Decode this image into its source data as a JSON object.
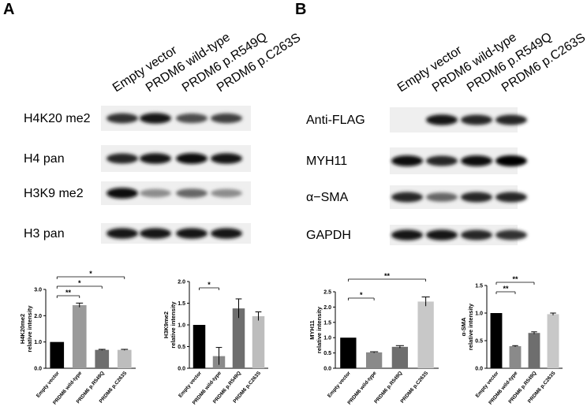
{
  "panels": [
    "A",
    "B"
  ],
  "blots": [
    {
      "lanes": [
        "Empty vector",
        "PRDM6 wild-type",
        "PRDM6 p.R549Q",
        "PRDM6 p.C263S"
      ],
      "rows": [
        "H4K20 me2",
        "H4 pan",
        "H3K9 me2",
        "H3 pan"
      ]
    },
    {
      "lanes": [
        "Empty vector",
        "PRDM6 wild-type",
        "PRDM6 p.R549Q",
        "PRDM6 p.C263S"
      ],
      "rows": [
        "Anti-FLAG",
        "MYH11",
        "α−SMA",
        "GAPDH"
      ]
    }
  ],
  "chart_data": [
    {
      "type": "bar",
      "ylabel": [
        "H4K20me2",
        "relative intensity"
      ],
      "categories": [
        "Empty vector",
        "PRDM6 wild-type",
        "PRDM6 p.R549Q",
        "PRDM6 p.C263S"
      ],
      "values": [
        1.0,
        2.4,
        0.7,
        0.7
      ],
      "errors": [
        null,
        0.08,
        0.02,
        0.02
      ],
      "colors": [
        "#000000",
        "#9a9a9a",
        "#6e6e6e",
        "#bdbdbd"
      ],
      "significance": [
        null,
        "**",
        "*",
        "*"
      ],
      "ylim": [
        0,
        3
      ],
      "yticks": [
        {
          "value": 0,
          "label": "0.0"
        },
        {
          "value": 1,
          "label": "1.0"
        },
        {
          "value": 2,
          "label": "2.0"
        },
        {
          "value": 3,
          "label": "3.0"
        }
      ]
    },
    {
      "type": "bar",
      "ylabel": [
        "H3K9me2",
        "relative intensity"
      ],
      "categories": [
        "Empty vector",
        "PRDM6 wild-type",
        "PRDM6 p.R549Q",
        "PRDM6 p.C263S"
      ],
      "values": [
        1.0,
        0.28,
        1.38,
        1.2
      ],
      "errors": [
        null,
        0.2,
        0.22,
        0.1
      ],
      "colors": [
        "#000000",
        "#8a8a8a",
        "#6e6e6e",
        "#bdbdbd"
      ],
      "significance": [
        null,
        "*",
        null,
        null
      ],
      "ylim": [
        0,
        2
      ],
      "yticks": [
        {
          "value": 0,
          "label": "0.0"
        },
        0.5,
        {
          "value": 1,
          "label": "1.0"
        },
        1.5,
        {
          "value": 2,
          "label": "2.0"
        }
      ]
    },
    {
      "type": "bar",
      "ylabel": [
        "MYH11",
        "relative intensity"
      ],
      "categories": [
        "Empty vector",
        "PRDM6 wild-type",
        "PRDM6 p.R549Q",
        "PRDM6 p.C263S"
      ],
      "values": [
        1.0,
        0.52,
        0.7,
        2.18
      ],
      "errors": [
        null,
        0.02,
        0.04,
        0.15
      ],
      "colors": [
        "#000000",
        "#8a8a8a",
        "#6e6e6e",
        "#c8c8c8"
      ],
      "significance": [
        null,
        "*",
        null,
        "**"
      ],
      "ylim": [
        0,
        2.5
      ],
      "yticks": [
        {
          "value": 0,
          "label": "0.0"
        },
        0.5,
        {
          "value": 1,
          "label": "1.0"
        },
        1.5,
        {
          "value": 2,
          "label": "2.0"
        },
        2.5
      ]
    },
    {
      "type": "bar",
      "ylabel": [
        "α-SMA",
        "relative intensity"
      ],
      "categories": [
        "Empty vector",
        "PRDM6 wild-type",
        "PRDM6 p.R549Q",
        "PRDM6 p.C263S"
      ],
      "values": [
        1.0,
        0.4,
        0.64,
        0.98
      ],
      "errors": [
        null,
        0.01,
        0.02,
        0.02
      ],
      "colors": [
        "#000000",
        "#8a8a8a",
        "#6e6e6e",
        "#c8c8c8"
      ],
      "significance": [
        null,
        "**",
        "**",
        null
      ],
      "ylim": [
        0,
        1.5
      ],
      "yticks": [
        {
          "value": 0,
          "label": "0.0"
        },
        0.5,
        {
          "value": 1,
          "label": "1.0"
        },
        1.5
      ]
    }
  ]
}
